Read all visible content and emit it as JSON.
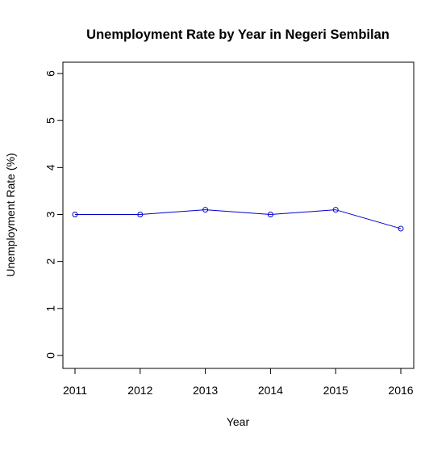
{
  "chart_data": {
    "type": "line",
    "title": "Unemployment Rate by Year in Negeri Sembilan",
    "xlabel": "Year",
    "ylabel": "Unemployment Rate (%)",
    "x": [
      2011,
      2012,
      2013,
      2014,
      2015,
      2016
    ],
    "x_tick_labels": [
      "2011",
      "2012",
      "2013",
      "2014",
      "2015",
      "2016"
    ],
    "y_tick_labels": [
      "0",
      "1",
      "2",
      "3",
      "4",
      "5",
      "6"
    ],
    "ylim": [
      0,
      6
    ],
    "xlim": [
      2011,
      2016
    ],
    "series": [
      {
        "values": [
          3.0,
          3.0,
          3.1,
          3.0,
          3.1,
          2.7
        ],
        "color": "#0000cd",
        "marker": "open-circle"
      }
    ],
    "grid": false,
    "legend": "none"
  }
}
